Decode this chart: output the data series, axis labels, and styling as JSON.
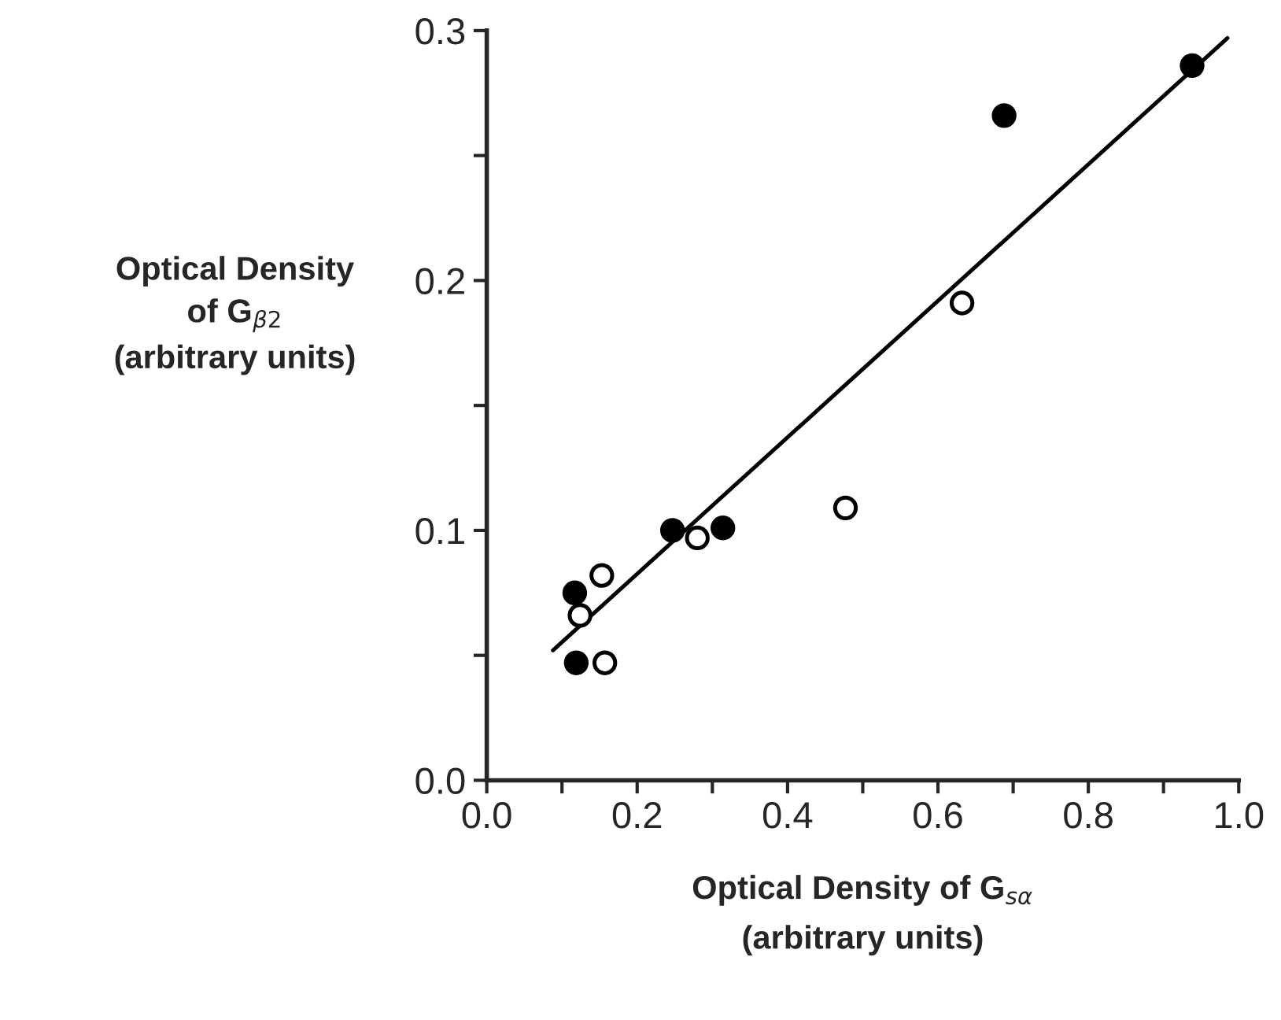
{
  "chart_data": {
    "type": "scatter",
    "xlabel": "Optical Density of G$_{sα}$\n(arbitrary units)",
    "ylabel": "Optical Density\nof G$_{β2}$\n(arbitrary units)",
    "xlim": [
      0,
      1
    ],
    "ylim": [
      0,
      0.3
    ],
    "xticks": [
      {
        "value": 0,
        "label": "0.0"
      },
      {
        "value": 0.1,
        "label": null
      },
      {
        "value": 0.2,
        "label": "0.2"
      },
      {
        "value": 0.3,
        "label": null
      },
      {
        "value": 0.4,
        "label": "0.4"
      },
      {
        "value": 0.5,
        "label": null
      },
      {
        "value": 0.6,
        "label": "0.6"
      },
      {
        "value": 0.7,
        "label": null
      },
      {
        "value": 0.8,
        "label": "0.8"
      },
      {
        "value": 0.9,
        "label": null
      },
      {
        "value": 1,
        "label": "1.0"
      }
    ],
    "yticks": [
      {
        "value": 0,
        "label": "0.0"
      },
      {
        "value": 0.05,
        "label": null
      },
      {
        "value": 0.1,
        "label": "0.1"
      },
      {
        "value": 0.15,
        "label": null
      },
      {
        "value": 0.2,
        "label": "0.2"
      },
      {
        "value": 0.25,
        "label": null
      },
      {
        "value": 0.3,
        "label": "0.3"
      }
    ],
    "grid": false,
    "legend": false,
    "series": [
      {
        "marker": "circle",
        "color": "#000000",
        "x": [
          0.117,
          0.119,
          0.247,
          0.314,
          0.688,
          0.938
        ],
        "values": [
          0.075,
          0.047,
          0.1,
          0.101,
          0.266,
          0.286
        ]
      },
      {
        "marker": "circle",
        "color": "#ffffff",
        "x": [
          0.124,
          0.153,
          0.157,
          0.28,
          0.477,
          0.632
        ],
        "values": [
          0.066,
          0.082,
          0.047,
          0.097,
          0.109,
          0.191
        ]
      },
      {
        "type": "line",
        "marker": "none",
        "color": "#000000",
        "x": [
          0.088,
          0.985
        ],
        "values": [
          0.052,
          0.297
        ]
      }
    ]
  }
}
